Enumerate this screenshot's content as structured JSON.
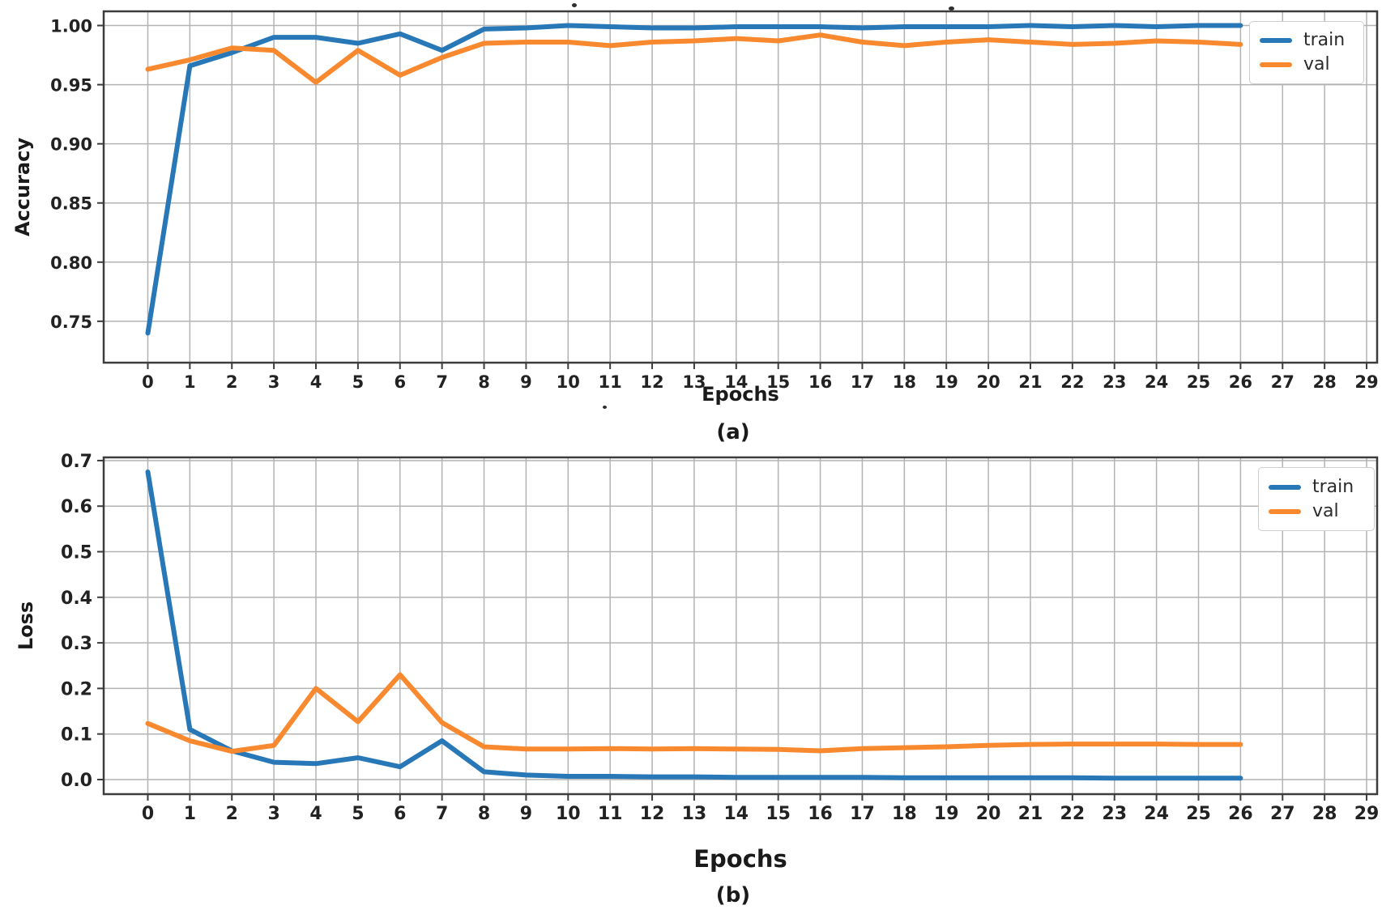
{
  "figure": {
    "background": "#ffffff",
    "frame_color": "#3c3c3c",
    "grid_color": "#b3b3b3",
    "tick_label_color": "#222222"
  },
  "chart_data": [
    {
      "type": "line",
      "title": "",
      "xlabel": "Epochs",
      "ylabel": "Accuracy",
      "caption": "(a)",
      "grid": true,
      "legend_position": "upper right",
      "legend_labels": [
        "train",
        "val"
      ],
      "x": [
        0,
        1,
        2,
        3,
        4,
        5,
        6,
        7,
        8,
        9,
        10,
        11,
        12,
        13,
        14,
        15,
        16,
        17,
        18,
        19,
        20,
        21,
        22,
        23,
        24,
        25,
        26
      ],
      "series": [
        {
          "name": "train",
          "color": "#2878b8",
          "values": [
            0.74,
            0.966,
            0.977,
            0.99,
            0.99,
            0.985,
            0.993,
            0.979,
            0.997,
            0.998,
            1.0,
            0.999,
            0.998,
            0.998,
            0.999,
            0.999,
            0.999,
            0.998,
            0.999,
            0.999,
            0.999,
            1.0,
            0.999,
            1.0,
            0.999,
            1.0,
            1.0
          ]
        },
        {
          "name": "val",
          "color": "#f8892f",
          "values": [
            0.963,
            0.971,
            0.981,
            0.979,
            0.952,
            0.979,
            0.958,
            0.973,
            0.985,
            0.986,
            0.986,
            0.983,
            0.986,
            0.987,
            0.989,
            0.987,
            0.992,
            0.986,
            0.983,
            0.986,
            0.988,
            0.986,
            0.984,
            0.985,
            0.987,
            0.986,
            0.984
          ]
        }
      ],
      "xticks": [
        0,
        1,
        2,
        3,
        4,
        5,
        6,
        7,
        8,
        9,
        10,
        11,
        12,
        13,
        14,
        15,
        16,
        17,
        18,
        19,
        20,
        21,
        22,
        23,
        24,
        25,
        26,
        27,
        28,
        29
      ],
      "yticks": [
        0.75,
        0.8,
        0.85,
        0.9,
        0.95,
        1.0
      ],
      "ytick_decimals": 2,
      "xlim": [
        -1.05,
        29.25
      ],
      "ylim": [
        0.715,
        1.012
      ]
    },
    {
      "type": "line",
      "title": "",
      "xlabel": "Epochs",
      "ylabel": "Loss",
      "caption": "(b)",
      "grid": true,
      "legend_position": "upper right",
      "legend_labels": [
        "train",
        "val"
      ],
      "x": [
        0,
        1,
        2,
        3,
        4,
        5,
        6,
        7,
        8,
        9,
        10,
        11,
        12,
        13,
        14,
        15,
        16,
        17,
        18,
        19,
        20,
        21,
        22,
        23,
        24,
        25,
        26
      ],
      "series": [
        {
          "name": "train",
          "color": "#2878b8",
          "values": [
            0.675,
            0.11,
            0.063,
            0.038,
            0.035,
            0.048,
            0.028,
            0.085,
            0.017,
            0.01,
            0.007,
            0.007,
            0.006,
            0.006,
            0.005,
            0.005,
            0.005,
            0.005,
            0.004,
            0.004,
            0.004,
            0.004,
            0.004,
            0.003,
            0.003,
            0.003,
            0.003
          ]
        },
        {
          "name": "val",
          "color": "#f8892f",
          "values": [
            0.123,
            0.085,
            0.062,
            0.075,
            0.2,
            0.127,
            0.23,
            0.125,
            0.072,
            0.067,
            0.067,
            0.068,
            0.067,
            0.068,
            0.067,
            0.066,
            0.063,
            0.068,
            0.07,
            0.072,
            0.075,
            0.077,
            0.078,
            0.078,
            0.078,
            0.077,
            0.077
          ]
        }
      ],
      "xticks": [
        0,
        1,
        2,
        3,
        4,
        5,
        6,
        7,
        8,
        9,
        10,
        11,
        12,
        13,
        14,
        15,
        16,
        17,
        18,
        19,
        20,
        21,
        22,
        23,
        24,
        25,
        26,
        27,
        28,
        29
      ],
      "yticks": [
        0.0,
        0.1,
        0.2,
        0.3,
        0.4,
        0.5,
        0.6,
        0.7
      ],
      "ytick_decimals": 1,
      "xlim": [
        -1.05,
        29.25
      ],
      "ylim": [
        -0.032,
        0.707
      ]
    }
  ]
}
